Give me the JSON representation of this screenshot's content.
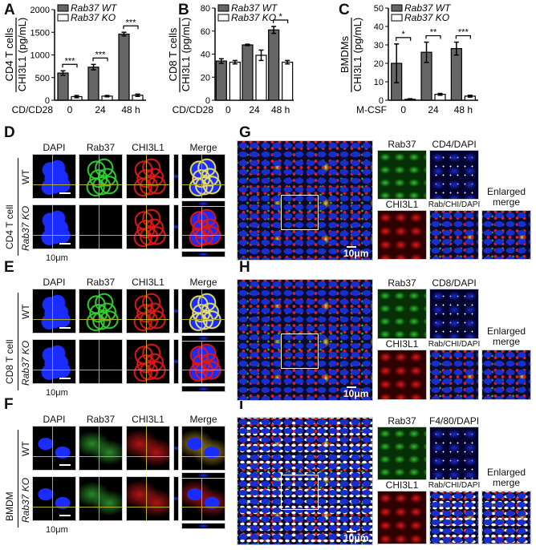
{
  "panels": {
    "A": "A",
    "B": "B",
    "C": "C",
    "D": "D",
    "E": "E",
    "F": "F",
    "G": "G",
    "H": "H",
    "I": "I"
  },
  "colors": {
    "wt_bar": "#666666",
    "ko_bar": "#ffffff",
    "dapi": "#1a2cff",
    "rab37": "#2fd12f",
    "chi3l1": "#e01818",
    "crosshair": "#b5b020"
  },
  "chart_data": [
    {
      "type": "bar",
      "cell_label": "CD4 T cells",
      "ylabel": "CHI3L1 (pg/mL)",
      "category_label": "CD/CD28",
      "categories": [
        "0",
        "24",
        "48 h"
      ],
      "ylim": [
        0,
        2000
      ],
      "yticks": [
        0,
        500,
        1000,
        1500,
        2000
      ],
      "series": [
        {
          "name": "Rab37 WT",
          "values": [
            600,
            730,
            1460
          ],
          "errors": [
            50,
            60,
            40
          ]
        },
        {
          "name": "Rab37 KO",
          "values": [
            80,
            90,
            110
          ],
          "errors": [
            25,
            15,
            25
          ]
        }
      ],
      "significance": [
        "***",
        "***",
        "***"
      ],
      "legend": "top"
    },
    {
      "type": "bar",
      "cell_label": "CD8 T cells",
      "ylabel": "CHI3L1 (pg/mL)",
      "category_label": "CD/CD28",
      "categories": [
        "0",
        "24",
        "48 h"
      ],
      "ylim": [
        0,
        80
      ],
      "yticks": [
        0,
        20,
        40,
        60,
        80
      ],
      "series": [
        {
          "name": "Rab37 WT",
          "values": [
            34,
            48,
            61
          ],
          "errors": [
            2,
            0.6,
            3
          ]
        },
        {
          "name": "Rab37 KO",
          "values": [
            33,
            39,
            33
          ],
          "errors": [
            1.5,
            4.5,
            1.5
          ]
        }
      ],
      "significance": [
        "",
        "",
        "*"
      ],
      "legend": "top"
    },
    {
      "type": "bar",
      "cell_label": "BMDMs",
      "ylabel": "CHI3L1 (pg/mL)",
      "category_label": "M-CSF",
      "categories": [
        "0",
        "24",
        "48 h"
      ],
      "ylim": [
        0,
        50
      ],
      "yticks": [
        0,
        10,
        20,
        30,
        40,
        50
      ],
      "series": [
        {
          "name": "Rab37 WT",
          "values": [
            20,
            26,
            28
          ],
          "errors": [
            10.5,
            5.5,
            3.5
          ]
        },
        {
          "name": "Rab37 KO",
          "values": [
            0.5,
            3.2,
            2.2
          ],
          "errors": [
            0.3,
            0.5,
            0.5
          ]
        }
      ],
      "significance": [
        "*",
        "**",
        "***"
      ],
      "legend": "top"
    }
  ],
  "confocal": {
    "headers": [
      "DAPI",
      "Rab37",
      "CHI3L1",
      "Merge"
    ],
    "row_wt": "WT",
    "row_ko": "Rab37 KO",
    "D_cell": "CD4 T cell",
    "E_cell": "CD8 T cell",
    "F_cell": "BMDM",
    "scale": "10μm"
  },
  "tissue": {
    "scale": "10μm",
    "G": {
      "top_left": "Rab37",
      "top_right": "CD4/DAPI",
      "bottom_left": "CHI3L1",
      "bottom_mid": "Rab/CHI/DAPI",
      "bottom_right": "Enlarged merge"
    },
    "H": {
      "top_left": "Rab37",
      "top_right": "CD8/DAPI",
      "bottom_left": "CHI3L1",
      "bottom_mid": "Rab/CHI/DAPI",
      "bottom_right": "Enlarged merge"
    },
    "I": {
      "top_left": "Rab37",
      "top_right": "F4/80/DAPI",
      "bottom_left": "CHI3L1",
      "bottom_mid": "Rab/CHI/DAPI",
      "bottom_right": "Enlarged merge"
    }
  }
}
